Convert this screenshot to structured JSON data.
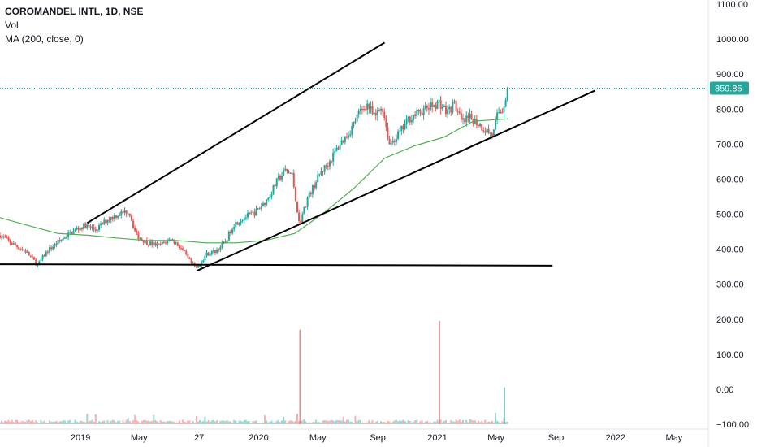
{
  "legend": {
    "title": "COROMANDEL INTL, 1D, NSE",
    "vol": "Vol",
    "ma": "MA (200, close, 0)"
  },
  "colors": {
    "up": "#26a69a",
    "down": "#ef5350",
    "ma": "#4caf50",
    "trendline": "#000000",
    "price_badge": "#26a69a",
    "price_line": "#26a69a"
  },
  "chart_data": {
    "type": "candlestick",
    "symbol": "COROMANDEL INTL",
    "interval": "1D",
    "exchange": "NSE",
    "last_price": 859.85,
    "last_price_label": "859.85",
    "y_axis_labels": [
      "1100.00",
      "1000.00",
      "900.00",
      "800.00",
      "700.00",
      "600.00",
      "500.00",
      "400.00",
      "300.00",
      "200.00",
      "100.00",
      "0.00",
      "−100.00"
    ],
    "ylim": [
      -100,
      1100
    ],
    "x_axis_labels": [
      "2019",
      "May",
      "27",
      "2020",
      "May",
      "Sep",
      "2021",
      "May",
      "Sep",
      "2022",
      "May"
    ],
    "x_label_dates": [
      "2019-01-01",
      "2019-05-01",
      "2019-09-01",
      "2020-01-01",
      "2020-05-01",
      "2020-09-01",
      "2021-01-01",
      "2021-05-01",
      "2021-09-01",
      "2022-01-01",
      "2022-05-01"
    ],
    "xlim": [
      "2018-07-20",
      "2022-07-10"
    ],
    "price_series": {
      "name": "close",
      "points": [
        [
          "2018-07-20",
          440
        ],
        [
          "2018-08-15",
          415
        ],
        [
          "2018-09-10",
          395
        ],
        [
          "2018-10-05",
          355
        ],
        [
          "2018-10-25",
          395
        ],
        [
          "2018-11-20",
          425
        ],
        [
          "2018-12-15",
          450
        ],
        [
          "2019-01-10",
          468
        ],
        [
          "2019-02-01",
          455
        ],
        [
          "2019-02-25",
          485
        ],
        [
          "2019-03-20",
          500
        ],
        [
          "2019-04-10",
          510
        ],
        [
          "2019-04-25",
          440
        ],
        [
          "2019-05-15",
          420
        ],
        [
          "2019-06-10",
          410
        ],
        [
          "2019-07-05",
          430
        ],
        [
          "2019-07-25",
          405
        ],
        [
          "2019-08-15",
          360
        ],
        [
          "2019-08-27",
          345
        ],
        [
          "2019-09-15",
          385
        ],
        [
          "2019-10-05",
          395
        ],
        [
          "2019-10-25",
          420
        ],
        [
          "2019-11-10",
          470
        ],
        [
          "2019-12-01",
          490
        ],
        [
          "2019-12-25",
          505
        ],
        [
          "2020-01-20",
          545
        ],
        [
          "2020-02-10",
          600
        ],
        [
          "2020-02-25",
          625
        ],
        [
          "2020-03-10",
          610
        ],
        [
          "2020-03-24",
          470
        ],
        [
          "2020-04-10",
          545
        ],
        [
          "2020-05-05",
          615
        ],
        [
          "2020-05-25",
          650
        ],
        [
          "2020-06-15",
          700
        ],
        [
          "2020-07-05",
          735
        ],
        [
          "2020-07-25",
          790
        ],
        [
          "2020-08-10",
          815
        ],
        [
          "2020-08-25",
          775
        ],
        [
          "2020-09-10",
          810
        ],
        [
          "2020-09-25",
          700
        ],
        [
          "2020-10-15",
          730
        ],
        [
          "2020-11-05",
          775
        ],
        [
          "2020-11-25",
          790
        ],
        [
          "2020-12-15",
          805
        ],
        [
          "2021-01-05",
          820
        ],
        [
          "2021-01-20",
          790
        ],
        [
          "2021-02-05",
          815
        ],
        [
          "2021-02-20",
          760
        ],
        [
          "2021-03-10",
          775
        ],
        [
          "2021-03-25",
          760
        ],
        [
          "2021-04-10",
          740
        ],
        [
          "2021-04-25",
          725
        ],
        [
          "2021-05-05",
          790
        ],
        [
          "2021-05-15",
          800
        ],
        [
          "2021-05-25",
          859.85
        ]
      ]
    },
    "ma_series": {
      "name": "MA (200, close, 0)",
      "points": [
        [
          "2018-07-20",
          490
        ],
        [
          "2018-09-15",
          468
        ],
        [
          "2018-11-15",
          445
        ],
        [
          "2019-01-15",
          440
        ],
        [
          "2019-03-15",
          432
        ],
        [
          "2019-05-15",
          425
        ],
        [
          "2019-07-15",
          425
        ],
        [
          "2019-09-15",
          418
        ],
        [
          "2019-11-15",
          418
        ],
        [
          "2020-01-15",
          425
        ],
        [
          "2020-03-15",
          445
        ],
        [
          "2020-05-15",
          505
        ],
        [
          "2020-07-15",
          575
        ],
        [
          "2020-09-15",
          660
        ],
        [
          "2020-11-15",
          695
        ],
        [
          "2021-01-15",
          720
        ],
        [
          "2021-03-15",
          765
        ],
        [
          "2021-05-01",
          770
        ],
        [
          "2021-05-25",
          772
        ]
      ]
    },
    "volume_spikes": [
      [
        "2020-03-25",
        170
      ],
      [
        "2021-01-05",
        195
      ],
      [
        "2021-05-18",
        5
      ]
    ],
    "volume_baseline": -100,
    "annotations": {
      "channel_upper": [
        [
          "2019-01-15",
          475
        ],
        [
          "2020-09-15",
          990
        ]
      ],
      "channel_lower": [
        [
          "2019-08-27",
          338
        ],
        [
          "2021-11-20",
          853
        ]
      ],
      "support_horizontal": [
        [
          "2018-07-20",
          357
        ],
        [
          "2021-08-25",
          353
        ]
      ]
    },
    "grid": false
  }
}
